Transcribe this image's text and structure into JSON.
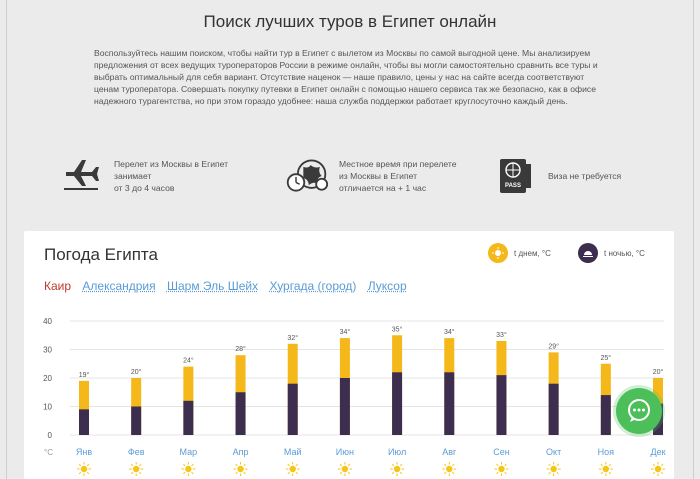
{
  "header": {
    "title": "Поиск лучших туров в Египет онлайн",
    "intro": "Воспользуйтесь нашим поиском, чтобы найти тур в Египет с вылетом из Москвы по самой выгодной цене. Мы анализируем предложения от всех ведущих туроператоров России в режиме онлайн, чтобы вы могли самостоятельно сравнить все туры и выбрать оптимальный для себя вариант. Отсутствие наценок — наше правило, цены у нас на сайте всегда соответствуют ценам туроператора. Совершать покупку путевки в Египет онлайн с помощью нашего сервиса так же безопасно, как в офисе надежного турагентства, но при этом гораздо удобнее: наша служба поддержки работает круглосуточно каждый день."
  },
  "features": [
    {
      "icon": "airplane-icon",
      "line1": "Перелет из Москвы в Египет",
      "line2": "занимает",
      "line3": "от 3 до 4 часов"
    },
    {
      "icon": "world-clock-icon",
      "line1": "Местное время при перелете",
      "line2": "из Москвы в Египет",
      "line3": "отличается на + 1 час"
    },
    {
      "icon": "passport-icon",
      "line1": "Виза не требуется"
    }
  ],
  "weather": {
    "title": "Погода Египта",
    "legend_day": "t днем, °C",
    "legend_night": "t ночью, °C",
    "cities": [
      "Каир",
      "Александрия",
      "Шарм Эль Шейх",
      "Хургада (город)",
      "Луксор"
    ],
    "active_city": "Каир"
  },
  "chart_data": {
    "type": "bar",
    "categories": [
      "Янв",
      "Фев",
      "Мар",
      "Апр",
      "Май",
      "Июн",
      "Июл",
      "Авг",
      "Сен",
      "Окт",
      "Ноя",
      "Дек"
    ],
    "series": [
      {
        "name": "t днем, °C",
        "color": "#f5b81a",
        "values": [
          19,
          20,
          24,
          28,
          32,
          34,
          35,
          34,
          33,
          29,
          25,
          20
        ]
      },
      {
        "name": "t ночью, °C",
        "color": "#3d2d4f",
        "values": [
          9,
          10,
          12,
          15,
          18,
          20,
          22,
          22,
          21,
          18,
          14,
          11
        ]
      }
    ],
    "data_labels": [
      "19°",
      "20°",
      "24°",
      "28°",
      "32°",
      "34°",
      "35°",
      "34°",
      "33°",
      "29°",
      "25°",
      "20°"
    ],
    "y_ticks": [
      "40",
      "30",
      "20",
      "10",
      "0"
    ],
    "y_unit": "°C",
    "ylim": [
      0,
      40
    ],
    "grid": true
  },
  "colors": {
    "day": "#f5b81a",
    "night": "#3d2d4f",
    "link": "#5b9bd5",
    "active": "#c0392b",
    "chat": "#4cbf5a"
  }
}
